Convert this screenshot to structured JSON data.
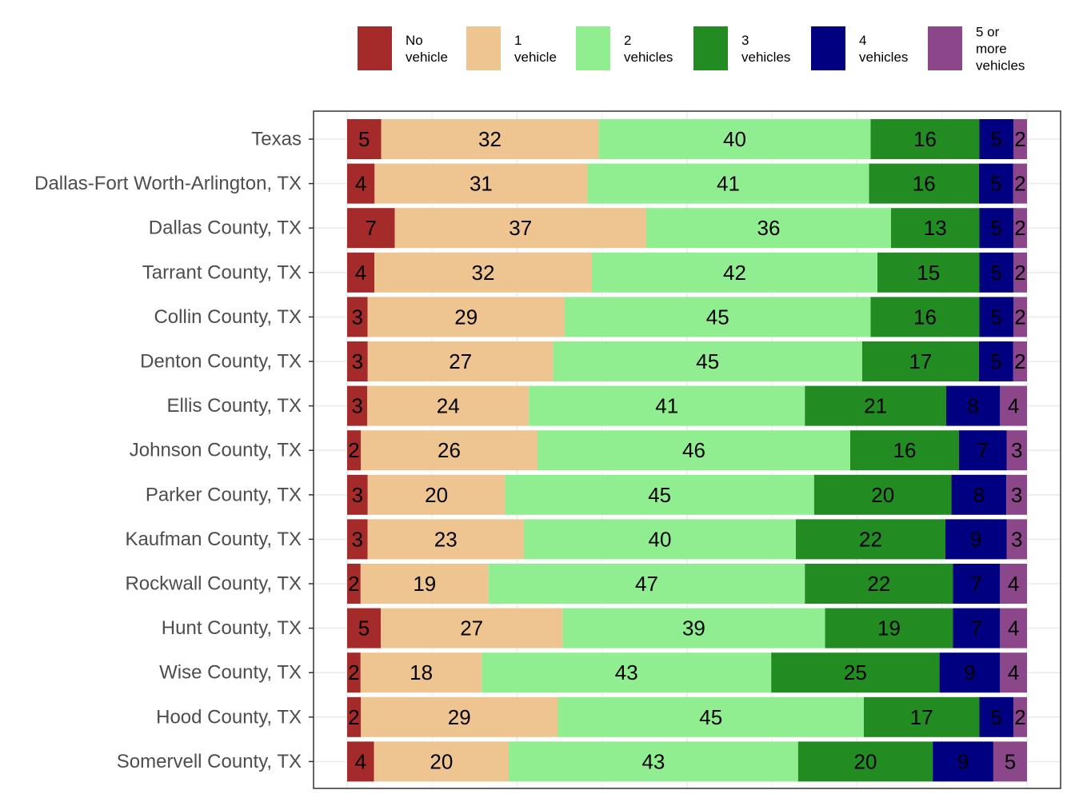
{
  "chart_data": {
    "type": "bar",
    "orientation": "horizontal",
    "stacked": true,
    "title": "",
    "xlabel": "",
    "ylabel": "",
    "xlim": [
      0,
      100
    ],
    "grid": true,
    "legend_position": "top-right",
    "categories": [
      "Texas",
      "Dallas-Fort Worth-Arlington, TX",
      "Dallas County, TX",
      "Tarrant County, TX",
      "Collin County, TX",
      "Denton County, TX",
      "Ellis County, TX",
      "Johnson County, TX",
      "Parker County, TX",
      "Kaufman County, TX",
      "Rockwall County, TX",
      "Hunt County, TX",
      "Wise County, TX",
      "Hood County, TX",
      "Somervell County, TX"
    ],
    "series": [
      {
        "name": "No vehicle",
        "legend_lines": [
          "No",
          "vehicle"
        ],
        "color": "#A52A2A",
        "values": [
          5,
          4,
          7,
          4,
          3,
          3,
          3,
          2,
          3,
          3,
          2,
          5,
          2,
          2,
          4
        ]
      },
      {
        "name": "1 vehicle",
        "legend_lines": [
          "1",
          "vehicle"
        ],
        "color": "#EEC591",
        "values": [
          32,
          31,
          37,
          32,
          29,
          27,
          24,
          26,
          20,
          23,
          19,
          27,
          18,
          29,
          20
        ]
      },
      {
        "name": "2 vehicles",
        "legend_lines": [
          "2",
          "vehicles"
        ],
        "color": "#90EE90",
        "values": [
          40,
          41,
          36,
          42,
          45,
          45,
          41,
          46,
          45,
          40,
          47,
          39,
          43,
          45,
          43
        ]
      },
      {
        "name": "3 vehicles",
        "legend_lines": [
          "3",
          "vehicles"
        ],
        "color": "#228B22",
        "values": [
          16,
          16,
          13,
          15,
          16,
          17,
          21,
          16,
          20,
          22,
          22,
          19,
          25,
          17,
          20
        ]
      },
      {
        "name": "4 vehicles",
        "legend_lines": [
          "4",
          "vehicles"
        ],
        "color": "#000080",
        "values": [
          5,
          5,
          5,
          5,
          5,
          5,
          8,
          7,
          8,
          9,
          7,
          7,
          9,
          5,
          9
        ]
      },
      {
        "name": "5 or more vehicles",
        "legend_lines": [
          "5 or",
          "more",
          "vehicles"
        ],
        "color": "#8B4789",
        "values": [
          2,
          2,
          2,
          2,
          2,
          2,
          4,
          3,
          3,
          3,
          4,
          4,
          4,
          2,
          5
        ]
      }
    ]
  }
}
